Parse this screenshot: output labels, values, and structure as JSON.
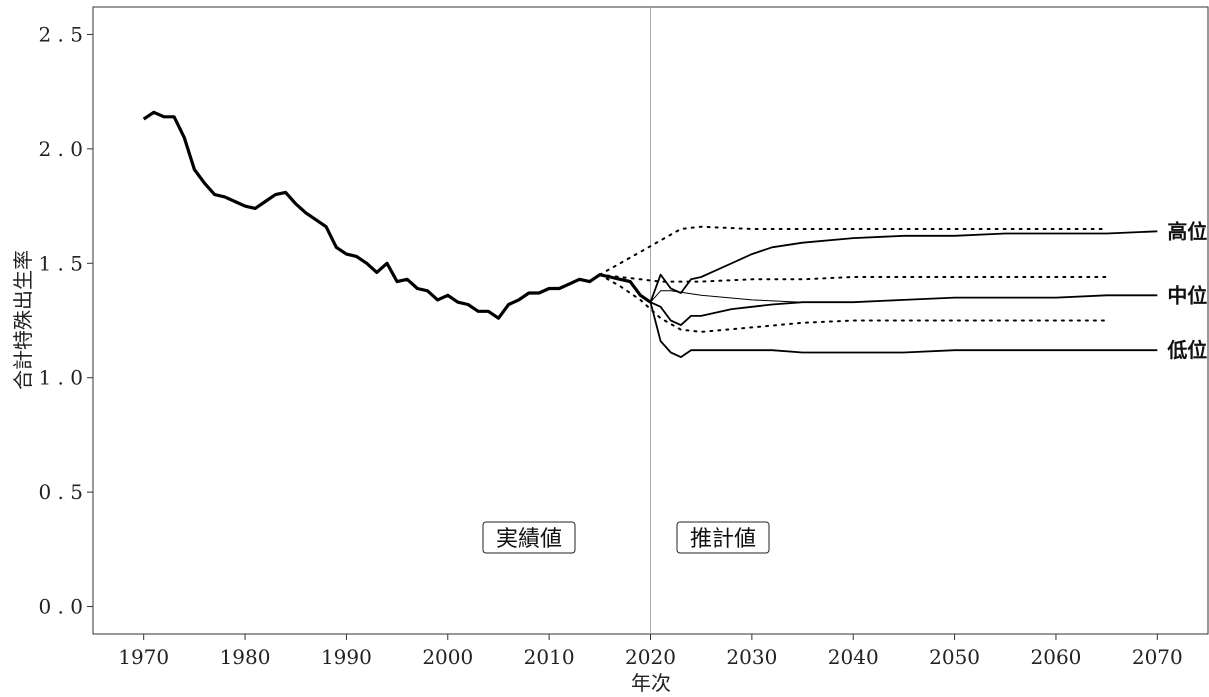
{
  "chart_data": {
    "type": "line",
    "xlabel": "年次",
    "ylabel": "合計特殊出生率",
    "xlim": [
      1965,
      2075
    ],
    "ylim": [
      -0.12,
      2.62
    ],
    "xticks": [
      1970,
      1980,
      1990,
      2000,
      2010,
      2020,
      2030,
      2040,
      2050,
      2060,
      2070
    ],
    "yticks": [
      "0.0",
      "0.5",
      "1.0",
      "1.5",
      "2.0",
      "2.5"
    ],
    "grid": false,
    "divider_year": 2020,
    "region_labels": {
      "actual": "実績値",
      "projected": "推計値"
    },
    "series": [
      {
        "key": "actual",
        "style": "thick",
        "x": [
          1970,
          1971,
          1972,
          1973,
          1974,
          1975,
          1976,
          1977,
          1978,
          1979,
          1980,
          1981,
          1982,
          1983,
          1984,
          1985,
          1986,
          1987,
          1988,
          1989,
          1990,
          1991,
          1992,
          1993,
          1994,
          1995,
          1996,
          1997,
          1998,
          1999,
          2000,
          2001,
          2002,
          2003,
          2004,
          2005,
          2006,
          2007,
          2008,
          2009,
          2010,
          2011,
          2012,
          2013,
          2014,
          2015,
          2016,
          2017,
          2018,
          2019,
          2020
        ],
        "values": [
          2.13,
          2.16,
          2.14,
          2.14,
          2.05,
          1.91,
          1.85,
          1.8,
          1.79,
          1.77,
          1.75,
          1.74,
          1.77,
          1.8,
          1.81,
          1.76,
          1.72,
          1.69,
          1.66,
          1.57,
          1.54,
          1.53,
          1.5,
          1.46,
          1.5,
          1.42,
          1.43,
          1.39,
          1.38,
          1.34,
          1.36,
          1.33,
          1.32,
          1.29,
          1.29,
          1.26,
          1.32,
          1.34,
          1.37,
          1.37,
          1.39,
          1.39,
          1.41,
          1.43,
          1.42,
          1.45,
          1.44,
          1.43,
          1.42,
          1.36,
          1.33
        ]
      },
      {
        "key": "high-2023",
        "label": "高位",
        "style": "solid",
        "x": [
          2020,
          2021,
          2022,
          2023,
          2024,
          2025,
          2026,
          2028,
          2030,
          2032,
          2035,
          2040,
          2045,
          2050,
          2055,
          2060,
          2065,
          2070
        ],
        "values": [
          1.33,
          1.45,
          1.39,
          1.37,
          1.43,
          1.44,
          1.46,
          1.5,
          1.54,
          1.57,
          1.59,
          1.61,
          1.62,
          1.62,
          1.63,
          1.63,
          1.63,
          1.64
        ]
      },
      {
        "key": "medium-2023",
        "label": "中位",
        "style": "solid",
        "x": [
          2020,
          2021,
          2022,
          2023,
          2024,
          2025,
          2026,
          2028,
          2030,
          2032,
          2035,
          2040,
          2045,
          2050,
          2055,
          2060,
          2065,
          2070
        ],
        "values": [
          1.33,
          1.31,
          1.25,
          1.23,
          1.27,
          1.27,
          1.28,
          1.3,
          1.31,
          1.32,
          1.33,
          1.33,
          1.34,
          1.35,
          1.35,
          1.35,
          1.36,
          1.36
        ]
      },
      {
        "key": "low-2023",
        "label": "低位",
        "style": "solid",
        "x": [
          2020,
          2021,
          2022,
          2023,
          2024,
          2025,
          2026,
          2028,
          2030,
          2032,
          2035,
          2040,
          2045,
          2050,
          2055,
          2060,
          2065,
          2070
        ],
        "values": [
          1.33,
          1.16,
          1.11,
          1.09,
          1.12,
          1.12,
          1.12,
          1.12,
          1.12,
          1.12,
          1.11,
          1.11,
          1.11,
          1.12,
          1.12,
          1.12,
          1.12,
          1.12
        ]
      },
      {
        "key": "medium-prev-thin",
        "style": "thin",
        "x": [
          2020,
          2021,
          2022,
          2025,
          2030,
          2035,
          2040
        ],
        "values": [
          1.33,
          1.38,
          1.38,
          1.36,
          1.34,
          1.33,
          1.33
        ]
      },
      {
        "key": "high-2017",
        "style": "dotted",
        "x": [
          2015,
          2017,
          2019,
          2021,
          2023,
          2025,
          2030,
          2035,
          2040,
          2045,
          2050,
          2055,
          2060,
          2065
        ],
        "values": [
          1.45,
          1.5,
          1.55,
          1.6,
          1.65,
          1.66,
          1.65,
          1.65,
          1.65,
          1.65,
          1.65,
          1.65,
          1.65,
          1.65
        ]
      },
      {
        "key": "medium-2017",
        "style": "dotted",
        "x": [
          2015,
          2017,
          2019,
          2021,
          2023,
          2025,
          2030,
          2035,
          2040,
          2045,
          2050,
          2055,
          2060,
          2065
        ],
        "values": [
          1.45,
          1.44,
          1.43,
          1.42,
          1.42,
          1.42,
          1.43,
          1.43,
          1.44,
          1.44,
          1.44,
          1.44,
          1.44,
          1.44
        ]
      },
      {
        "key": "low-2017",
        "style": "dotted",
        "x": [
          2015,
          2017,
          2019,
          2021,
          2023,
          2025,
          2030,
          2035,
          2040,
          2045,
          2050,
          2055,
          2060,
          2065
        ],
        "values": [
          1.45,
          1.4,
          1.34,
          1.26,
          1.21,
          1.2,
          1.22,
          1.24,
          1.25,
          1.25,
          1.25,
          1.25,
          1.25,
          1.25
        ]
      }
    ]
  }
}
